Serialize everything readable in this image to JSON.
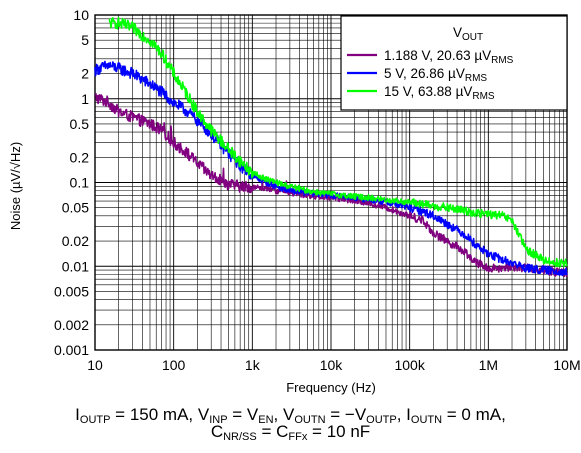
{
  "chart_data": {
    "type": "line",
    "xlabel": "Frequency (Hz)",
    "ylabel": "Noise (µV/√Hz)",
    "xscale": "log",
    "yscale": "log",
    "xlim": [
      10,
      10000000
    ],
    "ylim": [
      0.001,
      10
    ],
    "grid": true,
    "x_ticks": [
      {
        "value": 10,
        "label": "10"
      },
      {
        "value": 100,
        "label": "100"
      },
      {
        "value": 1000,
        "label": "1k"
      },
      {
        "value": 10000,
        "label": "10k"
      },
      {
        "value": 100000,
        "label": "100k"
      },
      {
        "value": 1000000,
        "label": "1M"
      },
      {
        "value": 10000000,
        "label": "10M"
      }
    ],
    "y_ticks": [
      {
        "value": 10,
        "label": "10"
      },
      {
        "value": 5,
        "label": "5"
      },
      {
        "value": 2,
        "label": "2"
      },
      {
        "value": 1,
        "label": "1"
      },
      {
        "value": 0.5,
        "label": "0.5"
      },
      {
        "value": 0.2,
        "label": "0.2"
      },
      {
        "value": 0.1,
        "label": "0.1"
      },
      {
        "value": 0.05,
        "label": "0.05"
      },
      {
        "value": 0.02,
        "label": "0.02"
      },
      {
        "value": 0.01,
        "label": "0.01"
      },
      {
        "value": 0.005,
        "label": "0.005"
      },
      {
        "value": 0.002,
        "label": "0.002"
      },
      {
        "value": 0.001,
        "label": "0.001"
      }
    ],
    "legend": {
      "position": "top-right",
      "title": "V",
      "title_sub": "OUT"
    },
    "series": [
      {
        "name": "1.188 V, 20.63 µV",
        "name_sub": "RMS",
        "color": "#800080",
        "x": [
          10,
          15,
          20,
          30,
          50,
          70,
          100,
          150,
          200,
          300,
          500,
          700,
          1000,
          1500,
          2000,
          3000,
          5000,
          7000,
          10000,
          15000,
          20000,
          30000,
          50000,
          70000,
          100000,
          150000,
          200000,
          300000,
          500000,
          700000,
          1000000,
          1500000,
          2000000,
          3000000,
          5000000,
          7000000,
          10000000
        ],
        "y": [
          1.05,
          0.9,
          0.7,
          0.6,
          0.5,
          0.42,
          0.3,
          0.22,
          0.17,
          0.12,
          0.095,
          0.09,
          0.088,
          0.085,
          0.08,
          0.075,
          0.07,
          0.068,
          0.066,
          0.063,
          0.06,
          0.057,
          0.05,
          0.045,
          0.04,
          0.035,
          0.025,
          0.02,
          0.015,
          0.011,
          0.0095,
          0.0095,
          0.01,
          0.0095,
          0.009,
          0.0085,
          0.0085
        ]
      },
      {
        "name": "5 V, 26.86 µV",
        "name_sub": "RMS",
        "color": "#0000ff",
        "x": [
          10,
          15,
          20,
          30,
          50,
          70,
          100,
          150,
          200,
          300,
          500,
          700,
          1000,
          1500,
          2000,
          3000,
          5000,
          7000,
          10000,
          15000,
          20000,
          30000,
          50000,
          70000,
          100000,
          150000,
          200000,
          300000,
          500000,
          700000,
          1000000,
          1500000,
          2000000,
          3000000,
          5000000,
          7000000,
          10000000
        ],
        "y": [
          2.2,
          2.5,
          2.3,
          2.0,
          1.5,
          1.2,
          0.9,
          0.7,
          0.55,
          0.38,
          0.22,
          0.16,
          0.12,
          0.1,
          0.09,
          0.08,
          0.075,
          0.073,
          0.07,
          0.068,
          0.066,
          0.063,
          0.058,
          0.054,
          0.05,
          0.045,
          0.04,
          0.032,
          0.024,
          0.018,
          0.014,
          0.012,
          0.011,
          0.0095,
          0.009,
          0.0088,
          0.0085
        ]
      },
      {
        "name": "15 V, 63.88 µV",
        "name_sub": "RMS",
        "color": "#00ff00",
        "x": [
          15,
          20,
          30,
          50,
          70,
          100,
          150,
          200,
          300,
          500,
          700,
          1000,
          1500,
          2000,
          3000,
          5000,
          7000,
          10000,
          15000,
          20000,
          30000,
          50000,
          70000,
          100000,
          150000,
          200000,
          300000,
          500000,
          700000,
          1000000,
          1500000,
          2000000,
          3000000,
          5000000,
          7000000,
          10000000
        ],
        "y": [
          8.0,
          8.0,
          7.0,
          5.0,
          3.5,
          2.0,
          1.1,
          0.7,
          0.42,
          0.25,
          0.18,
          0.13,
          0.11,
          0.1,
          0.09,
          0.08,
          0.076,
          0.073,
          0.07,
          0.068,
          0.066,
          0.062,
          0.06,
          0.058,
          0.055,
          0.052,
          0.05,
          0.046,
          0.043,
          0.042,
          0.04,
          0.035,
          0.016,
          0.012,
          0.011,
          0.011
        ]
      }
    ]
  },
  "caption": {
    "line1": [
      {
        "t": "I"
      },
      {
        "sub": "OUTP"
      },
      {
        "t": " = 150 mA, V"
      },
      {
        "sub": "INP"
      },
      {
        "t": " = V"
      },
      {
        "sub": "EN"
      },
      {
        "t": ", V"
      },
      {
        "sub": "OUTN"
      },
      {
        "t": " = −V"
      },
      {
        "sub": "OUTP"
      },
      {
        "t": ", I"
      },
      {
        "sub": "OUTN"
      },
      {
        "t": " = 0 mA,"
      }
    ],
    "line2": [
      {
        "t": "C"
      },
      {
        "sub": "NR/SS"
      },
      {
        "t": " = C"
      },
      {
        "sub": "FFx"
      },
      {
        "t": " = 10 nF"
      }
    ]
  }
}
